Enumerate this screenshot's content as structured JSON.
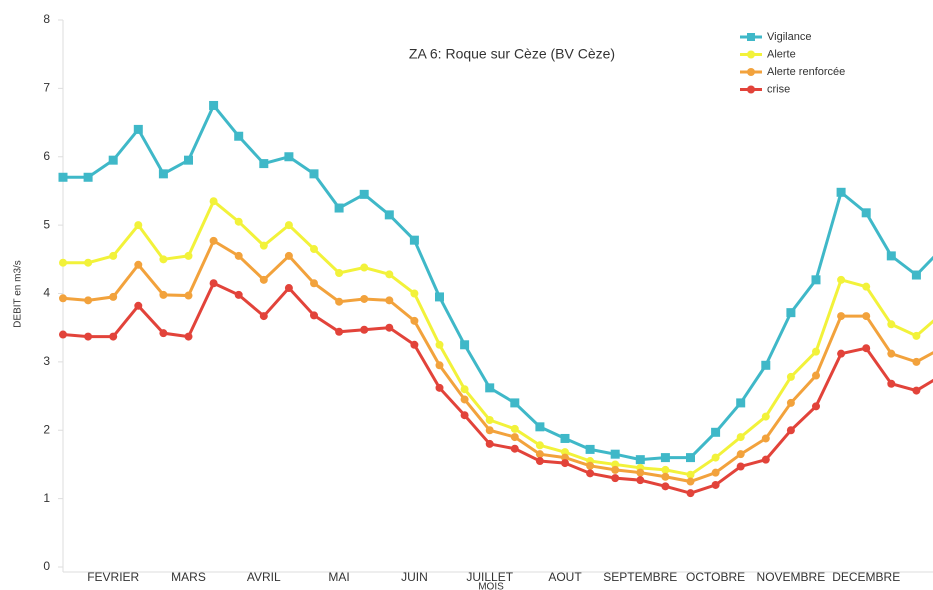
{
  "chart_data": {
    "type": "line",
    "title": "ZA 6: Roque sur Cèze (BV Cèze)",
    "x_label": "MOIS",
    "y_label": "DEBIT en m3/s",
    "categories": [
      null,
      null,
      "FEVRIER",
      null,
      null,
      "MARS",
      null,
      null,
      "AVRIL",
      null,
      null,
      "MAI",
      null,
      null,
      "JUIN",
      null,
      null,
      "JUILLET",
      null,
      null,
      "AOUT",
      null,
      null,
      "SEPTEMBRE",
      null,
      null,
      "OCTOBRE",
      null,
      null,
      "NOVEMBRE",
      null,
      null,
      "DECEMBRE",
      null,
      null,
      null
    ],
    "series": [
      {
        "name": "Vigilance",
        "color": "#3fb8c8",
        "values": [
          5.7,
          5.7,
          5.95,
          6.4,
          5.75,
          5.95,
          6.75,
          6.3,
          5.9,
          6.0,
          5.75,
          5.25,
          5.45,
          5.15,
          4.78,
          3.95,
          3.25,
          2.62,
          2.4,
          2.05,
          1.88,
          1.72,
          1.65,
          1.57,
          1.6,
          1.6,
          1.97,
          2.4,
          2.95,
          3.72,
          4.2,
          5.48,
          5.18,
          4.55,
          4.27,
          4.65
        ]
      },
      {
        "name": "Alerte",
        "color": "#f2f23a",
        "values": [
          4.45,
          4.45,
          4.55,
          5.0,
          4.5,
          4.55,
          5.35,
          5.05,
          4.7,
          5.0,
          4.65,
          4.3,
          4.38,
          4.28,
          4.0,
          3.25,
          2.6,
          2.15,
          2.02,
          1.78,
          1.68,
          1.55,
          1.5,
          1.45,
          1.42,
          1.35,
          1.6,
          1.9,
          2.2,
          2.78,
          3.15,
          4.2,
          4.1,
          3.55,
          3.38,
          3.7
        ]
      },
      {
        "name": "Alerte renforcée",
        "color": "#f2a23c",
        "values": [
          3.93,
          3.9,
          3.95,
          4.42,
          3.98,
          3.97,
          4.77,
          4.55,
          4.2,
          4.55,
          4.15,
          3.88,
          3.92,
          3.9,
          3.6,
          2.95,
          2.45,
          2.0,
          1.9,
          1.65,
          1.6,
          1.48,
          1.42,
          1.38,
          1.32,
          1.25,
          1.38,
          1.65,
          1.88,
          2.4,
          2.8,
          3.67,
          3.67,
          3.12,
          3.0,
          3.2
        ]
      },
      {
        "name": "crise",
        "color": "#e2433a",
        "values": [
          3.4,
          3.37,
          3.37,
          3.82,
          3.42,
          3.37,
          4.15,
          3.98,
          3.67,
          4.08,
          3.68,
          3.44,
          3.47,
          3.5,
          3.25,
          2.62,
          2.22,
          1.8,
          1.73,
          1.55,
          1.52,
          1.37,
          1.3,
          1.27,
          1.18,
          1.08,
          1.2,
          1.47,
          1.57,
          2.0,
          2.35,
          3.12,
          3.2,
          2.68,
          2.58,
          2.8
        ]
      }
    ],
    "ylim": [
      0,
      8
    ],
    "yticks": [
      0,
      1,
      2,
      3,
      4,
      5,
      6,
      7,
      8
    ],
    "grid": false,
    "legend": "top-right"
  }
}
